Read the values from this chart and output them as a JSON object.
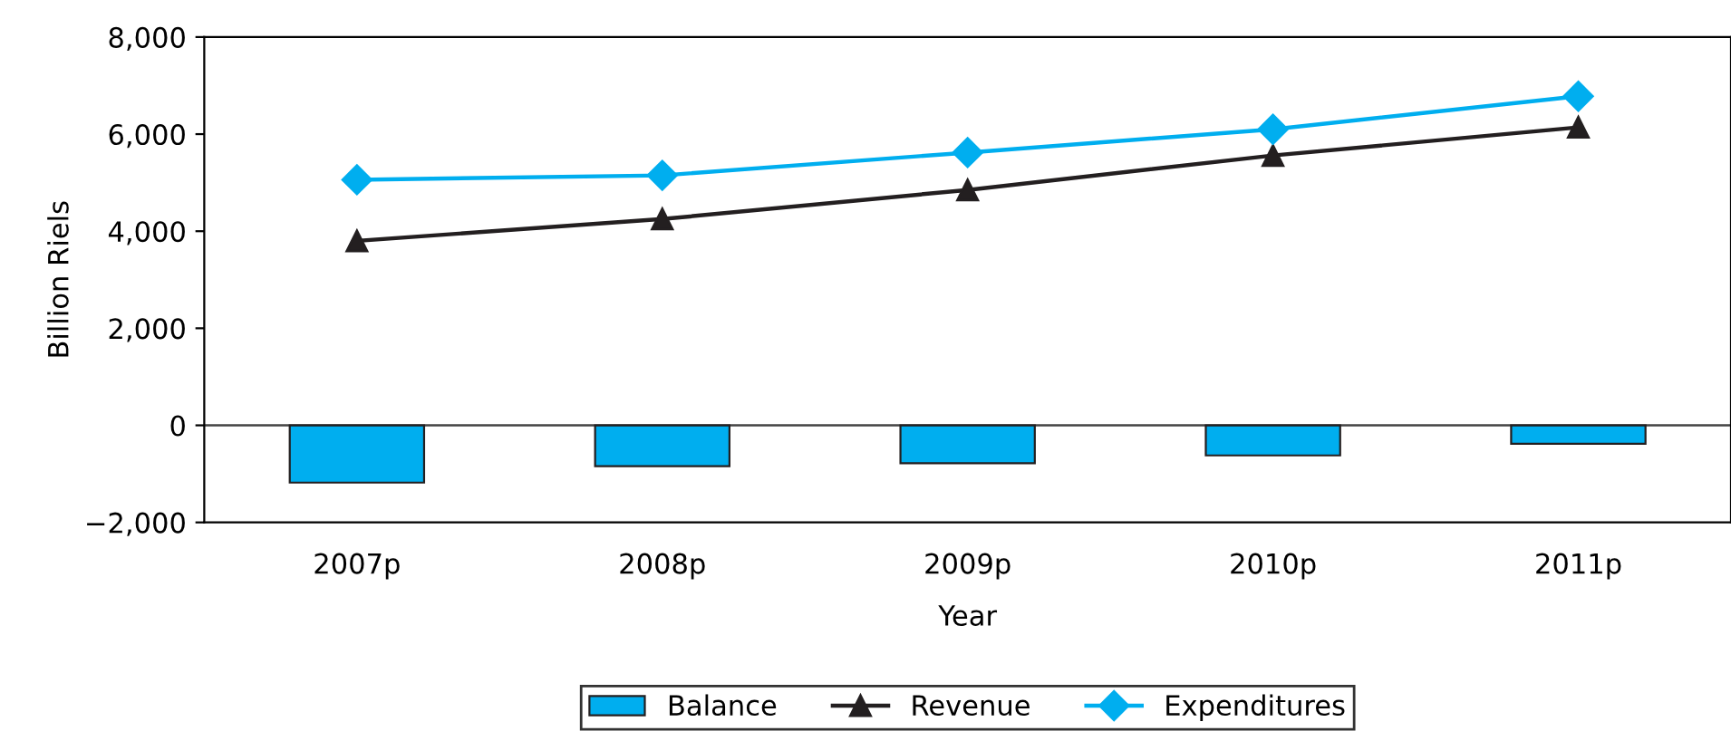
{
  "chart_data": {
    "type": "bar",
    "xlabel": "Year",
    "ylabel": "Billion Riels",
    "categories": [
      "2007p",
      "2008p",
      "2009p",
      "2010p",
      "2011p"
    ],
    "series": [
      {
        "name": "Balance",
        "color": "#00aeef",
        "values": [
          -1180,
          -840,
          -780,
          -620,
          -380
        ]
      },
      {
        "name": "Revenue",
        "type": "line",
        "color": "#231f20",
        "marker": "triangle",
        "values": [
          3800,
          4250,
          4850,
          5560,
          6140
        ]
      },
      {
        "name": "Expenditures",
        "type": "line",
        "color": "#00aeef",
        "marker": "diamond",
        "values": [
          5060,
          5150,
          5620,
          6100,
          6780
        ]
      }
    ],
    "ylim": [
      -2000,
      8000
    ],
    "yticks": [
      {
        "value": -2000,
        "label": "−2,000"
      },
      {
        "value": 0,
        "label": "0"
      },
      {
        "value": 2000,
        "label": "2,000"
      },
      {
        "value": 4000,
        "label": "4,000"
      },
      {
        "value": 6000,
        "label": "6,000"
      },
      {
        "value": 8000,
        "label": "8,000"
      }
    ],
    "ref_lines": [
      {
        "axis": "y",
        "value": 0,
        "color": "#444444"
      }
    ],
    "grid": false,
    "legend": "bottom"
  }
}
